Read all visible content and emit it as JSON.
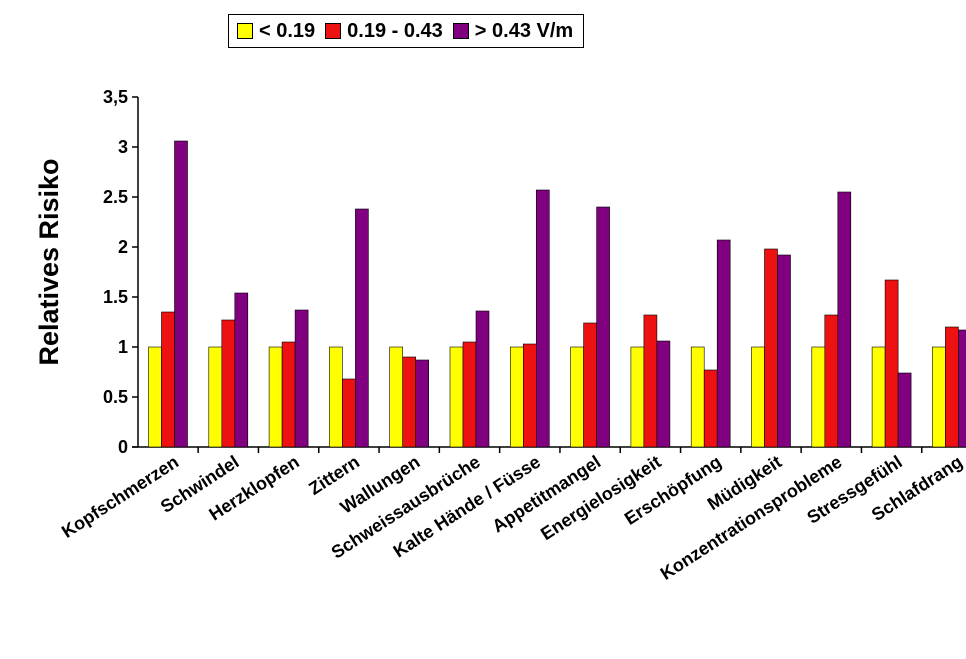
{
  "chart_data": {
    "type": "bar",
    "title": "",
    "xlabel": "",
    "ylabel": "Relatives Risiko",
    "ylim": [
      0,
      3.5
    ],
    "yticks": [
      "0",
      "0.5",
      "1",
      "1.5",
      "2",
      "2.5",
      "3",
      "3,5"
    ],
    "grid": false,
    "legend_position": "top",
    "categories": [
      "Kopfschmerzen",
      "Schwindel",
      "Herzklopfen",
      "Zittern",
      "Wallungen",
      "Schweissausbrüche",
      "Kalte Hände / Füsse",
      "Appetitmangel",
      "Energielosigkeit",
      "Erschöpfung",
      "Müdigkeit",
      "Konzentrationsprobleme",
      "Stressgefühl",
      "Schlafdrang"
    ],
    "series": [
      {
        "name": "< 0.19",
        "color": "#ffff00",
        "values": [
          1,
          1,
          1,
          1,
          1,
          1,
          1,
          1,
          1,
          1,
          1,
          1,
          1,
          1
        ]
      },
      {
        "name": "0.19 - 0.43",
        "color": "#ee1111",
        "values": [
          1.35,
          1.27,
          1.05,
          0.68,
          0.9,
          1.05,
          1.03,
          1.24,
          1.32,
          0.77,
          1.98,
          1.32,
          1.67,
          1.2
        ]
      },
      {
        "name": "> 0.43 V/m",
        "color": "#800080",
        "values": [
          3.06,
          1.54,
          1.37,
          2.38,
          0.87,
          1.36,
          2.57,
          2.4,
          1.06,
          2.07,
          1.92,
          2.55,
          0.74,
          1.17
        ]
      }
    ]
  }
}
